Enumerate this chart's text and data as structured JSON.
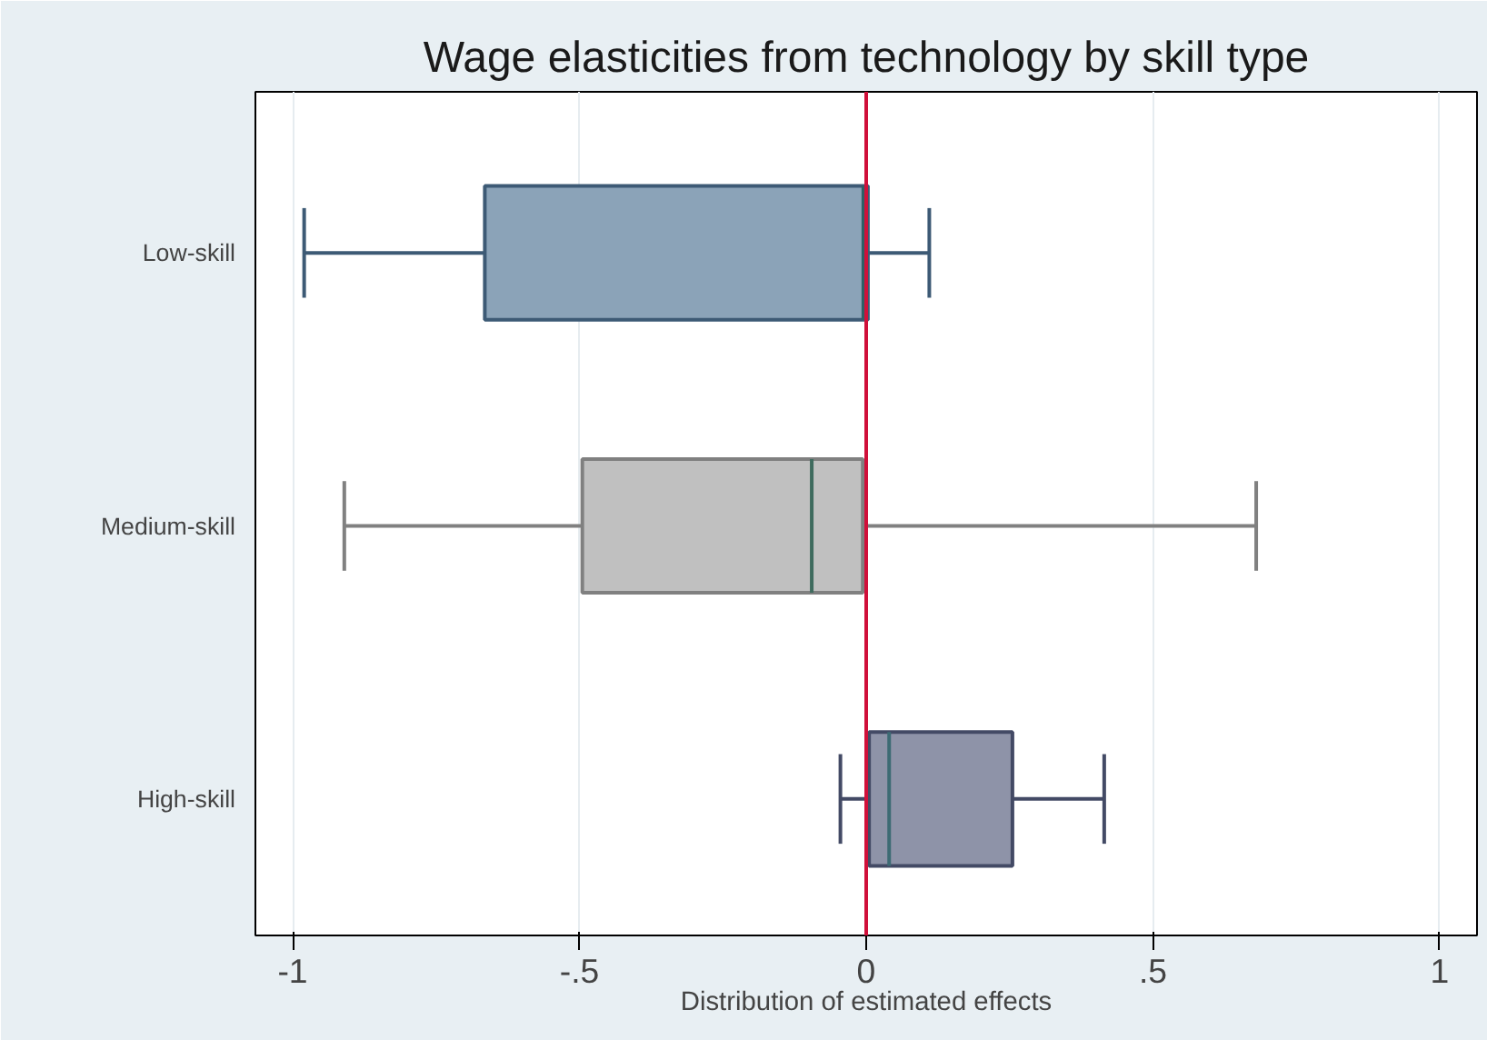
{
  "chart_data": {
    "type": "box",
    "title": "Wage elasticities from technology by skill type",
    "xlabel": "Distribution of estimated effects",
    "orientation": "horizontal",
    "categories": [
      "Low-skill",
      "Medium-skill",
      "High-skill"
    ],
    "boxes": [
      {
        "low": -0.98,
        "q1": -0.665,
        "median": -0.005,
        "q3": 0.003,
        "high": 0.11
      },
      {
        "low": -0.91,
        "q1": -0.495,
        "median": -0.095,
        "q3": -0.006,
        "high": 0.68
      },
      {
        "low": -0.045,
        "q1": 0.005,
        "median": 0.04,
        "q3": 0.255,
        "high": 0.415
      }
    ],
    "colors": [
      "#8ba3b8",
      "#c0c0c0",
      "#8e93a8"
    ],
    "xlim": [
      -1.065,
      1.065
    ],
    "xticks": [
      {
        "value": -1,
        "label": "-1"
      },
      {
        "value": -0.5,
        "label": "-.5"
      },
      {
        "value": 0,
        "label": "0"
      },
      {
        "value": 0.5,
        "label": ".5"
      },
      {
        "value": 1,
        "label": "1"
      }
    ],
    "ref_lines": [
      {
        "axis": "x",
        "value": 0,
        "label": null,
        "color": "#d0103a"
      }
    ],
    "grid": "x"
  }
}
